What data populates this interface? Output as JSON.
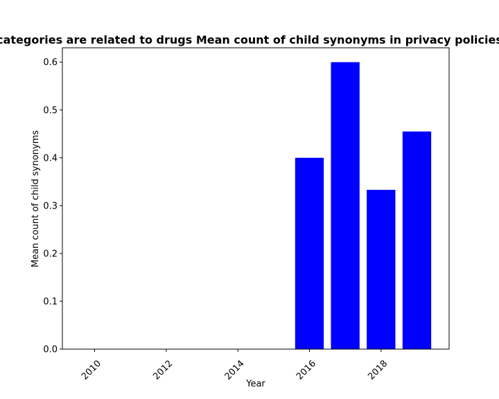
{
  "chart_data": {
    "type": "bar",
    "title": "categories are related to drugs Mean count of child synonyms in privacy policies",
    "xlabel": "Year",
    "ylabel": "Mean count of child synonyms",
    "x": [
      2016,
      2017,
      2018,
      2019
    ],
    "values": [
      0.4,
      0.6,
      0.333,
      0.455
    ],
    "xlim": [
      2009.1,
      2019.9
    ],
    "ylim": [
      0,
      0.63
    ],
    "xticks": [
      2010,
      2012,
      2014,
      2016,
      2018
    ],
    "yticks": [
      0.0,
      0.1,
      0.2,
      0.3,
      0.4,
      0.5,
      0.6
    ],
    "bar_width": 0.8,
    "bar_color": "#0000ff",
    "grid": false
  }
}
